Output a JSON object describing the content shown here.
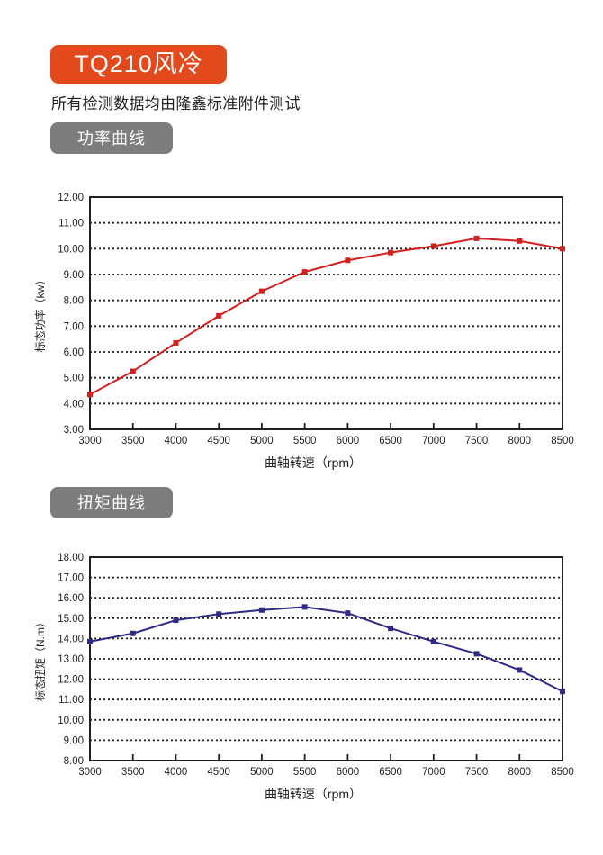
{
  "header": {
    "model_badge": "TQ210风冷",
    "model_badge_color": "#e2491d",
    "subtitle": "所有检测数据均由隆鑫标准附件测试"
  },
  "sections": [
    {
      "label": "功率曲线",
      "badge_color": "#7d7d7d"
    },
    {
      "label": "扭矩曲线",
      "badge_color": "#7d7d7d"
    }
  ],
  "chart_data": [
    {
      "type": "line",
      "title": "功率曲线",
      "xlabel": "曲轴转速（rpm）",
      "ylabel": "标态功率（kw）",
      "x": [
        3000,
        3500,
        4000,
        4500,
        5000,
        5500,
        6000,
        6500,
        7000,
        7500,
        8000,
        8500
      ],
      "series": [
        {
          "name": "标态功率",
          "color": "#d2201f",
          "marker": "square",
          "values": [
            4.35,
            5.25,
            6.35,
            7.4,
            8.35,
            9.1,
            9.55,
            9.85,
            10.1,
            10.4,
            10.3,
            10.0
          ]
        }
      ],
      "ylim": [
        3,
        12
      ],
      "ytick_step": 1,
      "ytick_format": "2dp",
      "grid": "horizontal-dotted",
      "legend": "none"
    },
    {
      "type": "line",
      "title": "扭矩曲线",
      "xlabel": "曲轴转速（rpm）",
      "ylabel": "标态扭矩（N.m）",
      "x": [
        3000,
        3500,
        4000,
        4500,
        5000,
        5500,
        6000,
        6500,
        7000,
        7500,
        8000,
        8500
      ],
      "series": [
        {
          "name": "标态扭矩",
          "color": "#2e2a85",
          "marker": "square",
          "values": [
            13.85,
            14.25,
            14.9,
            15.2,
            15.4,
            15.55,
            15.25,
            14.5,
            13.85,
            13.25,
            12.45,
            11.4
          ]
        }
      ],
      "ylim": [
        8,
        18
      ],
      "ytick_step": 1,
      "ytick_format": "2dp",
      "grid": "horizontal-dotted",
      "legend": "none"
    }
  ]
}
